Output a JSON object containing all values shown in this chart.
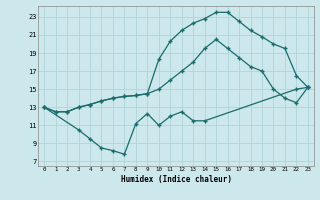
{
  "xlabel": "Humidex (Indice chaleur)",
  "bg_color": "#cce8ec",
  "grid_color": "#b0d4d8",
  "line_color": "#1a6b6b",
  "xlim": [
    -0.5,
    23.5
  ],
  "ylim": [
    6.5,
    24.2
  ],
  "xticks": [
    0,
    1,
    2,
    3,
    4,
    5,
    6,
    7,
    8,
    9,
    10,
    11,
    12,
    13,
    14,
    15,
    16,
    17,
    18,
    19,
    20,
    21,
    22,
    23
  ],
  "yticks": [
    7,
    9,
    11,
    13,
    15,
    17,
    19,
    21,
    23
  ],
  "line1_x": [
    0,
    1,
    2,
    3,
    4,
    5,
    6,
    7,
    8,
    9,
    10,
    11,
    12,
    13,
    14,
    15,
    16,
    17,
    18,
    19,
    20,
    21,
    22,
    23
  ],
  "line1_y": [
    13,
    12.5,
    12.5,
    13,
    13.3,
    13.7,
    14,
    14.2,
    14.3,
    14.5,
    18.3,
    20.3,
    21.5,
    22.3,
    22.8,
    23.5,
    23.5,
    22.5,
    21.5,
    20.8,
    20.0,
    19.5,
    16.5,
    15.2
  ],
  "line2_x": [
    0,
    1,
    2,
    3,
    4,
    5,
    6,
    7,
    8,
    9,
    10,
    11,
    12,
    13,
    14,
    15,
    16,
    17,
    18,
    19,
    20,
    21,
    22,
    23
  ],
  "line2_y": [
    13,
    12.5,
    12.5,
    13,
    13.3,
    13.7,
    14,
    14.2,
    14.3,
    14.5,
    15,
    16,
    17,
    18,
    19.5,
    20.5,
    19.5,
    18.5,
    17.5,
    17,
    15,
    14,
    13.5,
    15.2
  ],
  "line3_x": [
    0,
    3,
    4,
    5,
    6,
    7,
    8,
    9,
    10,
    11,
    12,
    13,
    14,
    22,
    23
  ],
  "line3_y": [
    13,
    10.5,
    9.5,
    8.5,
    8.2,
    7.8,
    11.2,
    12.3,
    11,
    12,
    12.5,
    11.5,
    11.5,
    15,
    15.2
  ]
}
